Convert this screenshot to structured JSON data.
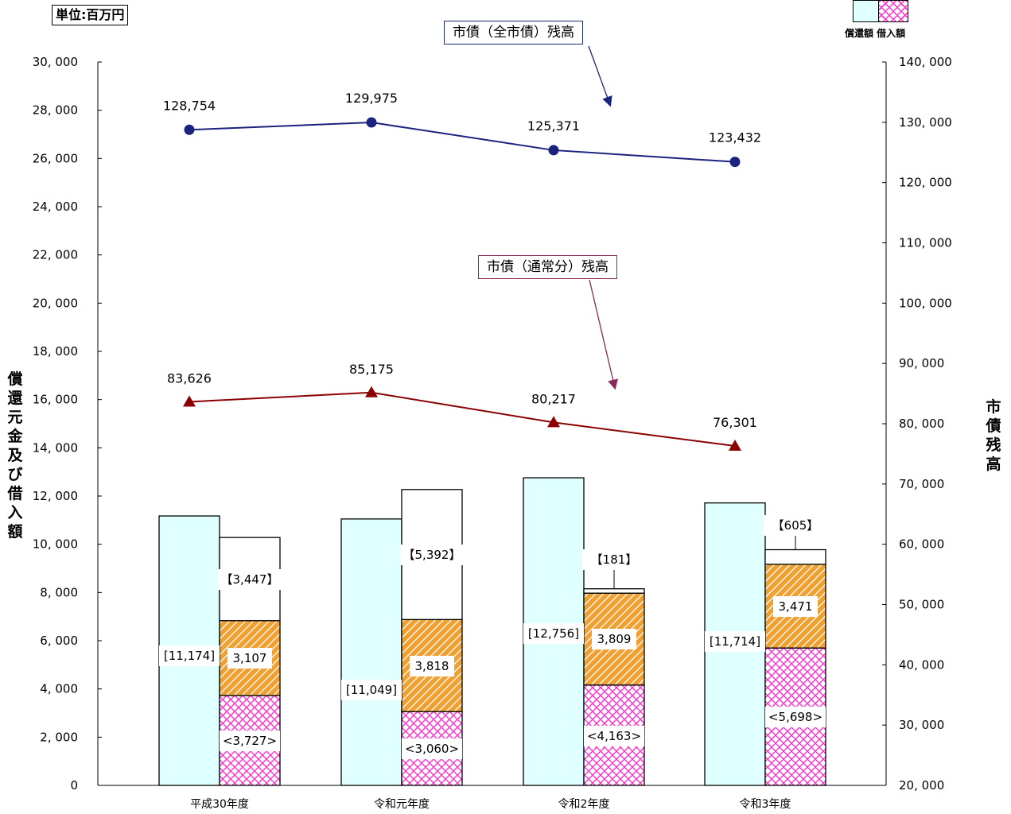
{
  "unit_label": "単位:百万円",
  "annotations": {
    "total_balance": "市債（全市債）残高",
    "normal_balance": "市債（通常分）残高"
  },
  "y_left_label": "償還元金及び借入額",
  "y_right_label": "市債残高",
  "legend": {
    "label": "償還額 借入額",
    "repayment_color": "#e0ffff",
    "borrowing_color": "#ff33cc"
  },
  "colors": {
    "total_line": "#1a237e",
    "normal_line": "#8b0000",
    "hatch_orange": "#f0a030",
    "crosshatch_magenta": "#ff33cc"
  },
  "chart_data": {
    "type": "bar+line",
    "categories": [
      "平成30年度",
      "令和元年度",
      "令和2年度",
      "令和3年度"
    ],
    "left_axis": {
      "ylim": [
        0,
        30000
      ],
      "ticks": [
        "0",
        "2, 000",
        "4, 000",
        "6, 000",
        "8, 000",
        "10, 000",
        "12, 000",
        "14, 000",
        "16, 000",
        "18, 000",
        "20, 000",
        "22, 000",
        "24, 000",
        "26, 000",
        "28, 000",
        "30, 000"
      ]
    },
    "right_axis": {
      "ylim": [
        20000,
        140000
      ],
      "ticks": [
        "20, 000",
        "30, 000",
        "40, 000",
        "50, 000",
        "60, 000",
        "70, 000",
        "80, 000",
        "90, 000",
        "100, 000",
        "110, 000",
        "120, 000",
        "130, 000",
        "140, 000"
      ]
    },
    "repayment": [
      11174,
      11049,
      12756,
      11714
    ],
    "repayment_labels": [
      "[11,174]",
      "[11,049]",
      "[12,756]",
      "[11,714]"
    ],
    "borrowing_cross": [
      3727,
      3060,
      4163,
      5698
    ],
    "borrowing_cross_labels": [
      "<3,727>",
      "<3,060>",
      "<4,163>",
      "<5,698>"
    ],
    "borrowing_hatch": [
      3107,
      3818,
      3809,
      3471
    ],
    "borrowing_hatch_labels": [
      "3,107",
      "3,818",
      "3,809",
      "3,471"
    ],
    "borrowing_white": [
      3447,
      5392,
      181,
      605
    ],
    "borrowing_white_labels": [
      "【3,447】",
      "【5,392】",
      "【181】",
      "【605】"
    ],
    "line_total": [
      128754,
      129975,
      125371,
      123432
    ],
    "line_total_labels": [
      "128,754",
      "129,975",
      "125,371",
      "123,432"
    ],
    "line_normal": [
      83626,
      85175,
      80217,
      76301
    ],
    "line_normal_labels": [
      "83,626",
      "85,175",
      "80,217",
      "76,301"
    ]
  }
}
